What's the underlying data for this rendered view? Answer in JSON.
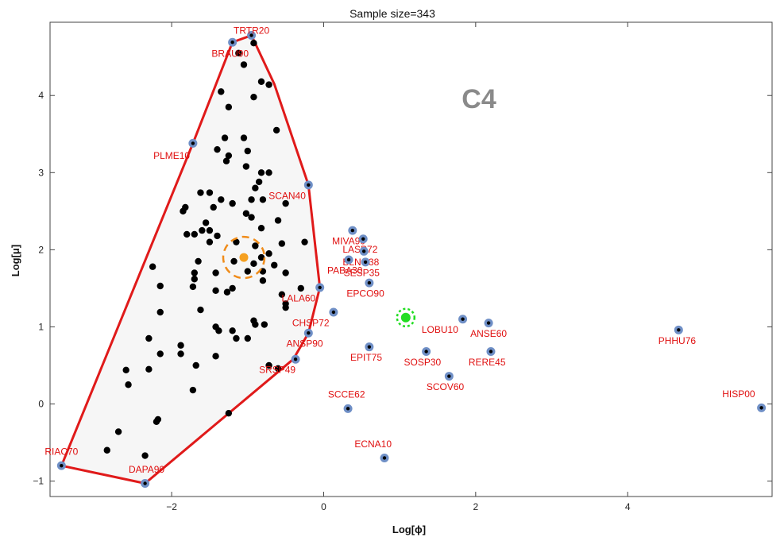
{
  "chart_data": {
    "type": "scatter",
    "title": "Sample size=343",
    "panel_label": "C4",
    "xlabel": "Log[ϕ]",
    "ylabel": "Log[μ]",
    "xlim": [
      -3.6,
      5.9
    ],
    "ylim": [
      -1.2,
      4.95
    ],
    "xticks": [
      -2,
      0,
      2,
      4
    ],
    "yticks": [
      -1,
      0,
      1,
      2,
      3,
      4
    ],
    "xtick_labels": [
      "−2",
      "0",
      "2",
      "4"
    ],
    "ytick_labels": [
      "−1",
      "0",
      "1",
      "2",
      "3",
      "4"
    ],
    "hull": [
      [
        -3.45,
        -0.8
      ],
      [
        -2.35,
        -1.03
      ],
      [
        -0.4,
        0.58
      ],
      [
        -0.2,
        0.92
      ],
      [
        -0.05,
        1.51
      ],
      [
        -0.2,
        2.84
      ],
      [
        -0.65,
        4.15
      ],
      [
        -0.95,
        4.78
      ],
      [
        -1.2,
        4.69
      ],
      [
        -1.72,
        3.38
      ],
      [
        -3.45,
        -0.8
      ]
    ],
    "hull_color": "#e01a1a",
    "inner_points": [
      [
        -1.05,
        4.4
      ],
      [
        -1.12,
        4.55
      ],
      [
        -0.92,
        4.68
      ],
      [
        -0.82,
        4.18
      ],
      [
        -0.72,
        4.14
      ],
      [
        -1.35,
        4.05
      ],
      [
        -0.92,
        3.98
      ],
      [
        -1.25,
        3.85
      ],
      [
        -0.62,
        3.55
      ],
      [
        -1.3,
        3.45
      ],
      [
        -1.05,
        3.45
      ],
      [
        -1.4,
        3.3
      ],
      [
        -1.0,
        3.28
      ],
      [
        -1.25,
        3.22
      ],
      [
        -0.82,
        3.0
      ],
      [
        -1.28,
        3.15
      ],
      [
        -0.72,
        3.0
      ],
      [
        -0.9,
        2.8
      ],
      [
        -0.85,
        2.88
      ],
      [
        -1.02,
        3.08
      ],
      [
        -1.62,
        2.74
      ],
      [
        -1.5,
        2.74
      ],
      [
        -1.2,
        2.6
      ],
      [
        -1.35,
        2.65
      ],
      [
        -0.95,
        2.65
      ],
      [
        -0.8,
        2.65
      ],
      [
        -0.5,
        2.6
      ],
      [
        -0.25,
        2.1
      ],
      [
        -0.55,
        2.08
      ],
      [
        -1.45,
        2.55
      ],
      [
        -1.82,
        2.55
      ],
      [
        -1.85,
        2.5
      ],
      [
        -1.02,
        2.47
      ],
      [
        -0.95,
        2.42
      ],
      [
        -1.8,
        2.2
      ],
      [
        -1.55,
        2.35
      ],
      [
        -1.6,
        2.25
      ],
      [
        -1.5,
        2.25
      ],
      [
        -1.4,
        2.18
      ],
      [
        -1.15,
        2.1
      ],
      [
        -1.7,
        2.2
      ],
      [
        -1.5,
        2.1
      ],
      [
        -0.9,
        2.05
      ],
      [
        -0.82,
        1.9
      ],
      [
        -0.82,
        2.28
      ],
      [
        -0.6,
        2.38
      ],
      [
        -0.65,
        1.8
      ],
      [
        -0.72,
        1.95
      ],
      [
        -0.8,
        1.72
      ],
      [
        -0.92,
        1.82
      ],
      [
        -1.18,
        1.85
      ],
      [
        -1.0,
        1.72
      ],
      [
        -1.65,
        1.85
      ],
      [
        -1.7,
        1.7
      ],
      [
        -1.72,
        1.52
      ],
      [
        -1.42,
        1.7
      ],
      [
        -1.42,
        1.47
      ],
      [
        -1.7,
        1.62
      ],
      [
        -2.15,
        1.53
      ],
      [
        -2.25,
        1.78
      ],
      [
        -1.2,
        1.5
      ],
      [
        -1.27,
        1.45
      ],
      [
        -0.8,
        1.6
      ],
      [
        -0.5,
        1.7
      ],
      [
        -0.3,
        1.5
      ],
      [
        -0.55,
        1.42
      ],
      [
        -0.5,
        1.3
      ],
      [
        -0.5,
        1.25
      ],
      [
        -1.62,
        1.22
      ],
      [
        -2.15,
        1.19
      ],
      [
        -0.92,
        1.08
      ],
      [
        -0.9,
        1.03
      ],
      [
        -0.78,
        1.03
      ],
      [
        -1.42,
        1.0
      ],
      [
        -1.38,
        0.95
      ],
      [
        -1.2,
        0.95
      ],
      [
        -1.15,
        0.85
      ],
      [
        -1.0,
        0.85
      ],
      [
        -1.88,
        0.76
      ],
      [
        -1.88,
        0.65
      ],
      [
        -1.42,
        0.62
      ],
      [
        -2.3,
        0.85
      ],
      [
        -2.15,
        0.65
      ],
      [
        -2.3,
        0.45
      ],
      [
        -2.6,
        0.44
      ],
      [
        -2.57,
        0.25
      ],
      [
        -1.72,
        0.18
      ],
      [
        -0.72,
        0.5
      ],
      [
        -0.6,
        0.46
      ],
      [
        -2.18,
        -0.2
      ],
      [
        -2.2,
        -0.23
      ],
      [
        -2.7,
        -0.36
      ],
      [
        -2.35,
        -0.67
      ],
      [
        -2.85,
        -0.6
      ],
      [
        -1.25,
        -0.12
      ],
      [
        -1.68,
        0.5
      ]
    ],
    "labeled_points": [
      {
        "label": "TRTR20",
        "x": -0.95,
        "y": 4.78,
        "dx": 0,
        "dy": 0.02
      },
      {
        "label": "BRAU90",
        "x": -1.2,
        "y": 4.69,
        "dx": -0.03,
        "dy": -0.19
      },
      {
        "label": "PLME10",
        "x": -1.72,
        "y": 3.38,
        "dx": -0.28,
        "dy": -0.2
      },
      {
        "label": "SCAN40",
        "x": -0.2,
        "y": 2.84,
        "dx": -0.28,
        "dy": -0.18
      },
      {
        "label": "MIVA90",
        "x": 0.38,
        "y": 2.25,
        "dx": -0.05,
        "dy": -0.18
      },
      {
        "label": "LASP72",
        "x": 0.52,
        "y": 2.14,
        "dx": -0.04,
        "dy": -0.18
      },
      {
        "label": "BLNO38",
        "x": 0.53,
        "y": 1.98,
        "dx": -0.04,
        "dy": -0.18
      },
      {
        "label": "PABA30",
        "x": 0.33,
        "y": 1.87,
        "dx": -0.05,
        "dy": -0.18
      },
      {
        "label": "SESP35",
        "x": 0.55,
        "y": 1.84,
        "dx": -0.05,
        "dy": -0.18
      },
      {
        "label": "EPCO90",
        "x": 0.6,
        "y": 1.57,
        "dx": -0.05,
        "dy": -0.18
      },
      {
        "label": "LALA60",
        "x": -0.05,
        "y": 1.51,
        "dx": -0.28,
        "dy": -0.18
      },
      {
        "label": "CHSP72",
        "x": 0.13,
        "y": 1.19,
        "dx": -0.3,
        "dy": -0.18
      },
      {
        "label": "ANSP90",
        "x": -0.2,
        "y": 0.92,
        "dx": -0.05,
        "dy": -0.18
      },
      {
        "label": "SRSP49",
        "x": -0.37,
        "y": 0.58,
        "dx": -0.24,
        "dy": -0.18
      },
      {
        "label": "EPIT75",
        "x": 0.6,
        "y": 0.74,
        "dx": -0.04,
        "dy": -0.18
      },
      {
        "label": "LOBU10",
        "x": 1.83,
        "y": 1.1,
        "dx": -0.3,
        "dy": -0.18
      },
      {
        "label": "ANSE60",
        "x": 2.17,
        "y": 1.05,
        "dx": 0,
        "dy": -0.18
      },
      {
        "label": "SOSP30",
        "x": 1.35,
        "y": 0.68,
        "dx": -0.05,
        "dy": -0.18
      },
      {
        "label": "RERE45",
        "x": 2.2,
        "y": 0.68,
        "dx": -0.05,
        "dy": -0.18
      },
      {
        "label": "SCOV60",
        "x": 1.65,
        "y": 0.36,
        "dx": -0.05,
        "dy": -0.18
      },
      {
        "label": "SCCE62",
        "x": 0.32,
        "y": -0.06,
        "dx": -0.02,
        "dy": 0.14
      },
      {
        "label": "ECNA10",
        "x": 0.8,
        "y": -0.7,
        "dx": -0.15,
        "dy": 0.14
      },
      {
        "label": "PHHU76",
        "x": 4.67,
        "y": 0.96,
        "dx": -0.02,
        "dy": -0.18
      },
      {
        "label": "HISP00",
        "x": 5.76,
        "y": -0.05,
        "dx": -0.3,
        "dy": 0.14
      },
      {
        "label": "RIAC70",
        "x": -3.45,
        "y": -0.8,
        "dx": 0.0,
        "dy": 0.14
      },
      {
        "label": "DAPA90",
        "x": -2.35,
        "y": -1.03,
        "dx": 0.02,
        "dy": 0.14
      }
    ],
    "centroid": {
      "x": -1.05,
      "y": 1.9,
      "color": "#f5a020",
      "circle_color": "#f08c1a"
    },
    "highlight": {
      "x": 1.08,
      "y": 1.12,
      "color": "#22dd22"
    },
    "point_color": "#000000",
    "labeled_outer_color": "#6f8fc6",
    "label_color": "#e01010"
  }
}
